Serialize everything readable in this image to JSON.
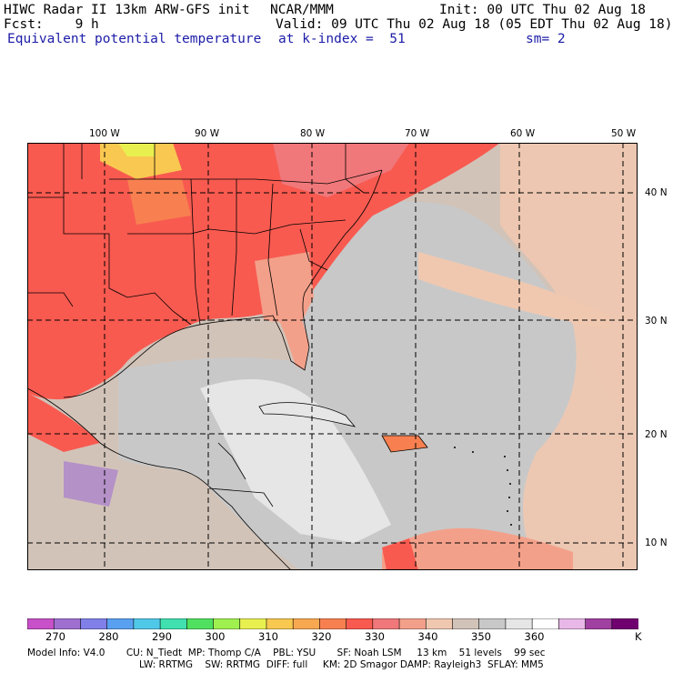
{
  "header": {
    "model": "HIWC Radar II 13km ARW-GFS init",
    "ncar": "NCAR/MMM",
    "init": "Init: 00 UTC Thu 02 Aug 18",
    "fcst": "Fcst:    9 h",
    "valid": "Valid: 09 UTC Thu 02 Aug 18 (05 EDT Thu 02 Aug 18)",
    "field": "Equivalent potential temperature",
    "level": "at k-index =  51",
    "smooth": "sm= 2"
  },
  "map": {
    "lon_labels": [
      "100 W",
      "90 W",
      "80 W",
      "70 W",
      "60 W",
      "50 W"
    ],
    "lat_labels": [
      "40 N",
      "30 N",
      "20 N",
      "10 N"
    ],
    "colors": {
      "land_warm": "#f85a50",
      "ocean_gray": "#c8c8c8",
      "ocean_tan": "#d2c3b8",
      "peach": "#f0c8b0",
      "salmon": "#f3a08a"
    }
  },
  "colorbar": {
    "colors": [
      "#c850c8",
      "#a070d0",
      "#8080e8",
      "#5aa0f0",
      "#50c8e8",
      "#40e0b0",
      "#50e060",
      "#a0f050",
      "#e8f050",
      "#f8c850",
      "#f8a850",
      "#f88050",
      "#f85a50",
      "#f0787a",
      "#f3a08a",
      "#f0c8b0",
      "#d2c3b8",
      "#c8c8c8",
      "#e6e6e6",
      "#ffffff",
      "#e8b8e8",
      "#a040a0",
      "#700070"
    ],
    "ticks": [
      "270",
      "280",
      "290",
      "300",
      "310",
      "320",
      "330",
      "340",
      "350",
      "360"
    ],
    "unit": "K"
  },
  "model_info": {
    "line1": "Model Info: V4.0       CU: N_Tiedt  MP: Thomp C/A    PBL: YSU       SF: Noah LSM     13 km    51 levels    99 sec",
    "line2": "LW: RRTMG    SW: RRTMG  DIFF: full     KM: 2D Smagor DAMP: Rayleigh3  SFLAY: MM5"
  }
}
